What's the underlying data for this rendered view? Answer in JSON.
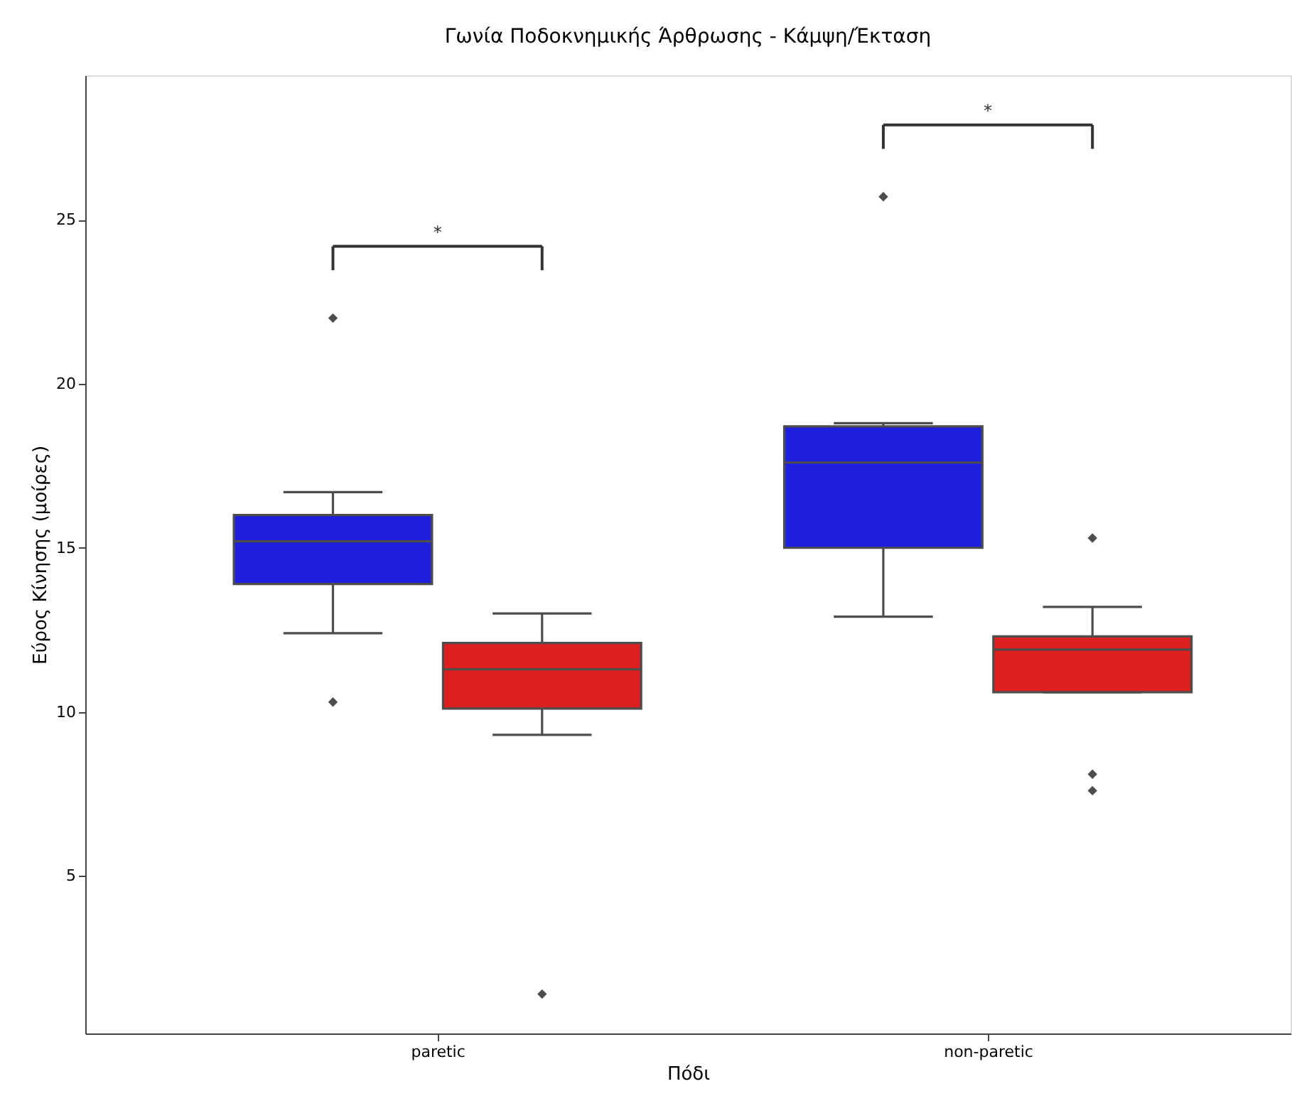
{
  "chart_data": {
    "type": "box",
    "title": "Γωνία Ποδοκνημικής Άρθρωσης - Κάμψη/Έκταση",
    "xlabel": "Πόδι",
    "ylabel": "Εύρος Κίνησης (μοίρες)",
    "categories": [
      "paretic",
      "non-paretic"
    ],
    "series": [
      {
        "color": "#1f1fdf",
        "boxes": [
          {
            "low": 12.4,
            "q1": 13.9,
            "median": 15.2,
            "q3": 16.0,
            "high": 16.7,
            "outliers": [
              22.0,
              10.3
            ]
          },
          {
            "low": 12.9,
            "q1": 15.0,
            "median": 17.6,
            "q3": 18.7,
            "high": 18.8,
            "outliers": [
              25.7
            ]
          }
        ]
      },
      {
        "color": "#dd1f1f",
        "boxes": [
          {
            "low": 9.3,
            "q1": 10.1,
            "median": 11.3,
            "q3": 12.1,
            "high": 13.0,
            "outliers": [
              1.4
            ]
          },
          {
            "low": 10.6,
            "q1": 10.6,
            "median": 11.9,
            "q3": 12.3,
            "high": 13.2,
            "outliers": [
              15.3,
              8.1,
              7.6
            ]
          }
        ]
      }
    ],
    "ylim": [
      0.2,
      29.4
    ],
    "yticks": [
      5,
      10,
      15,
      20,
      25
    ],
    "grid": false,
    "annotations": [
      "*",
      "*"
    ]
  }
}
